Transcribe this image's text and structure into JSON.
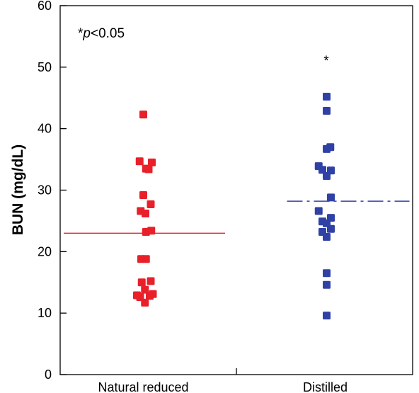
{
  "chart_data": {
    "type": "scatter",
    "title": "",
    "xlabel": "",
    "ylabel": "BUN (mg/dL)",
    "ylim": [
      0,
      60
    ],
    "yticks": [
      0,
      10,
      20,
      30,
      40,
      50,
      60
    ],
    "grid": false,
    "categories": [
      "Natural reduced",
      "Distilled"
    ],
    "series": [
      {
        "category": "Natural reduced",
        "color": "#e8202a",
        "mean": 23.0,
        "mean_line_style": "solid",
        "points": [
          [
            0.0,
            42.3
          ],
          [
            -0.7,
            34.7
          ],
          [
            0.5,
            33.5
          ],
          [
            1.0,
            33.4
          ],
          [
            1.6,
            34.5
          ],
          [
            0.0,
            29.2
          ],
          [
            1.4,
            27.7
          ],
          [
            -0.5,
            26.6
          ],
          [
            0.4,
            26.2
          ],
          [
            0.5,
            23.2
          ],
          [
            1.5,
            23.4
          ],
          [
            -0.4,
            18.8
          ],
          [
            0.5,
            18.8
          ],
          [
            -0.3,
            15.0
          ],
          [
            1.4,
            15.2
          ],
          [
            0.3,
            13.8
          ],
          [
            -1.2,
            12.9
          ],
          [
            -0.6,
            12.6
          ],
          [
            0.3,
            11.7
          ],
          [
            1.2,
            12.8
          ],
          [
            1.8,
            13.1
          ]
        ]
      },
      {
        "category": "Distilled",
        "color": "#3041a6",
        "mean": 28.2,
        "mean_line_style": "dash-dot",
        "points": [
          [
            0.0,
            45.2
          ],
          [
            0.0,
            42.9
          ],
          [
            0.0,
            36.7
          ],
          [
            0.7,
            37.0
          ],
          [
            -1.5,
            33.9
          ],
          [
            -0.8,
            33.3
          ],
          [
            0.0,
            32.3
          ],
          [
            0.8,
            33.2
          ],
          [
            0.8,
            28.8
          ],
          [
            -1.5,
            26.6
          ],
          [
            -0.8,
            24.9
          ],
          [
            0.0,
            24.6
          ],
          [
            0.8,
            25.5
          ],
          [
            -0.8,
            23.2
          ],
          [
            0.0,
            22.4
          ],
          [
            0.8,
            23.7
          ],
          [
            0.0,
            16.5
          ],
          [
            0.0,
            14.6
          ],
          [
            0.0,
            9.6
          ]
        ]
      }
    ],
    "annotations": [
      {
        "text_prefix": "*",
        "text_italic": "p",
        "text_suffix": "<0.05",
        "position": "top-left"
      },
      {
        "text": "*",
        "position": "above-distilled"
      }
    ]
  }
}
